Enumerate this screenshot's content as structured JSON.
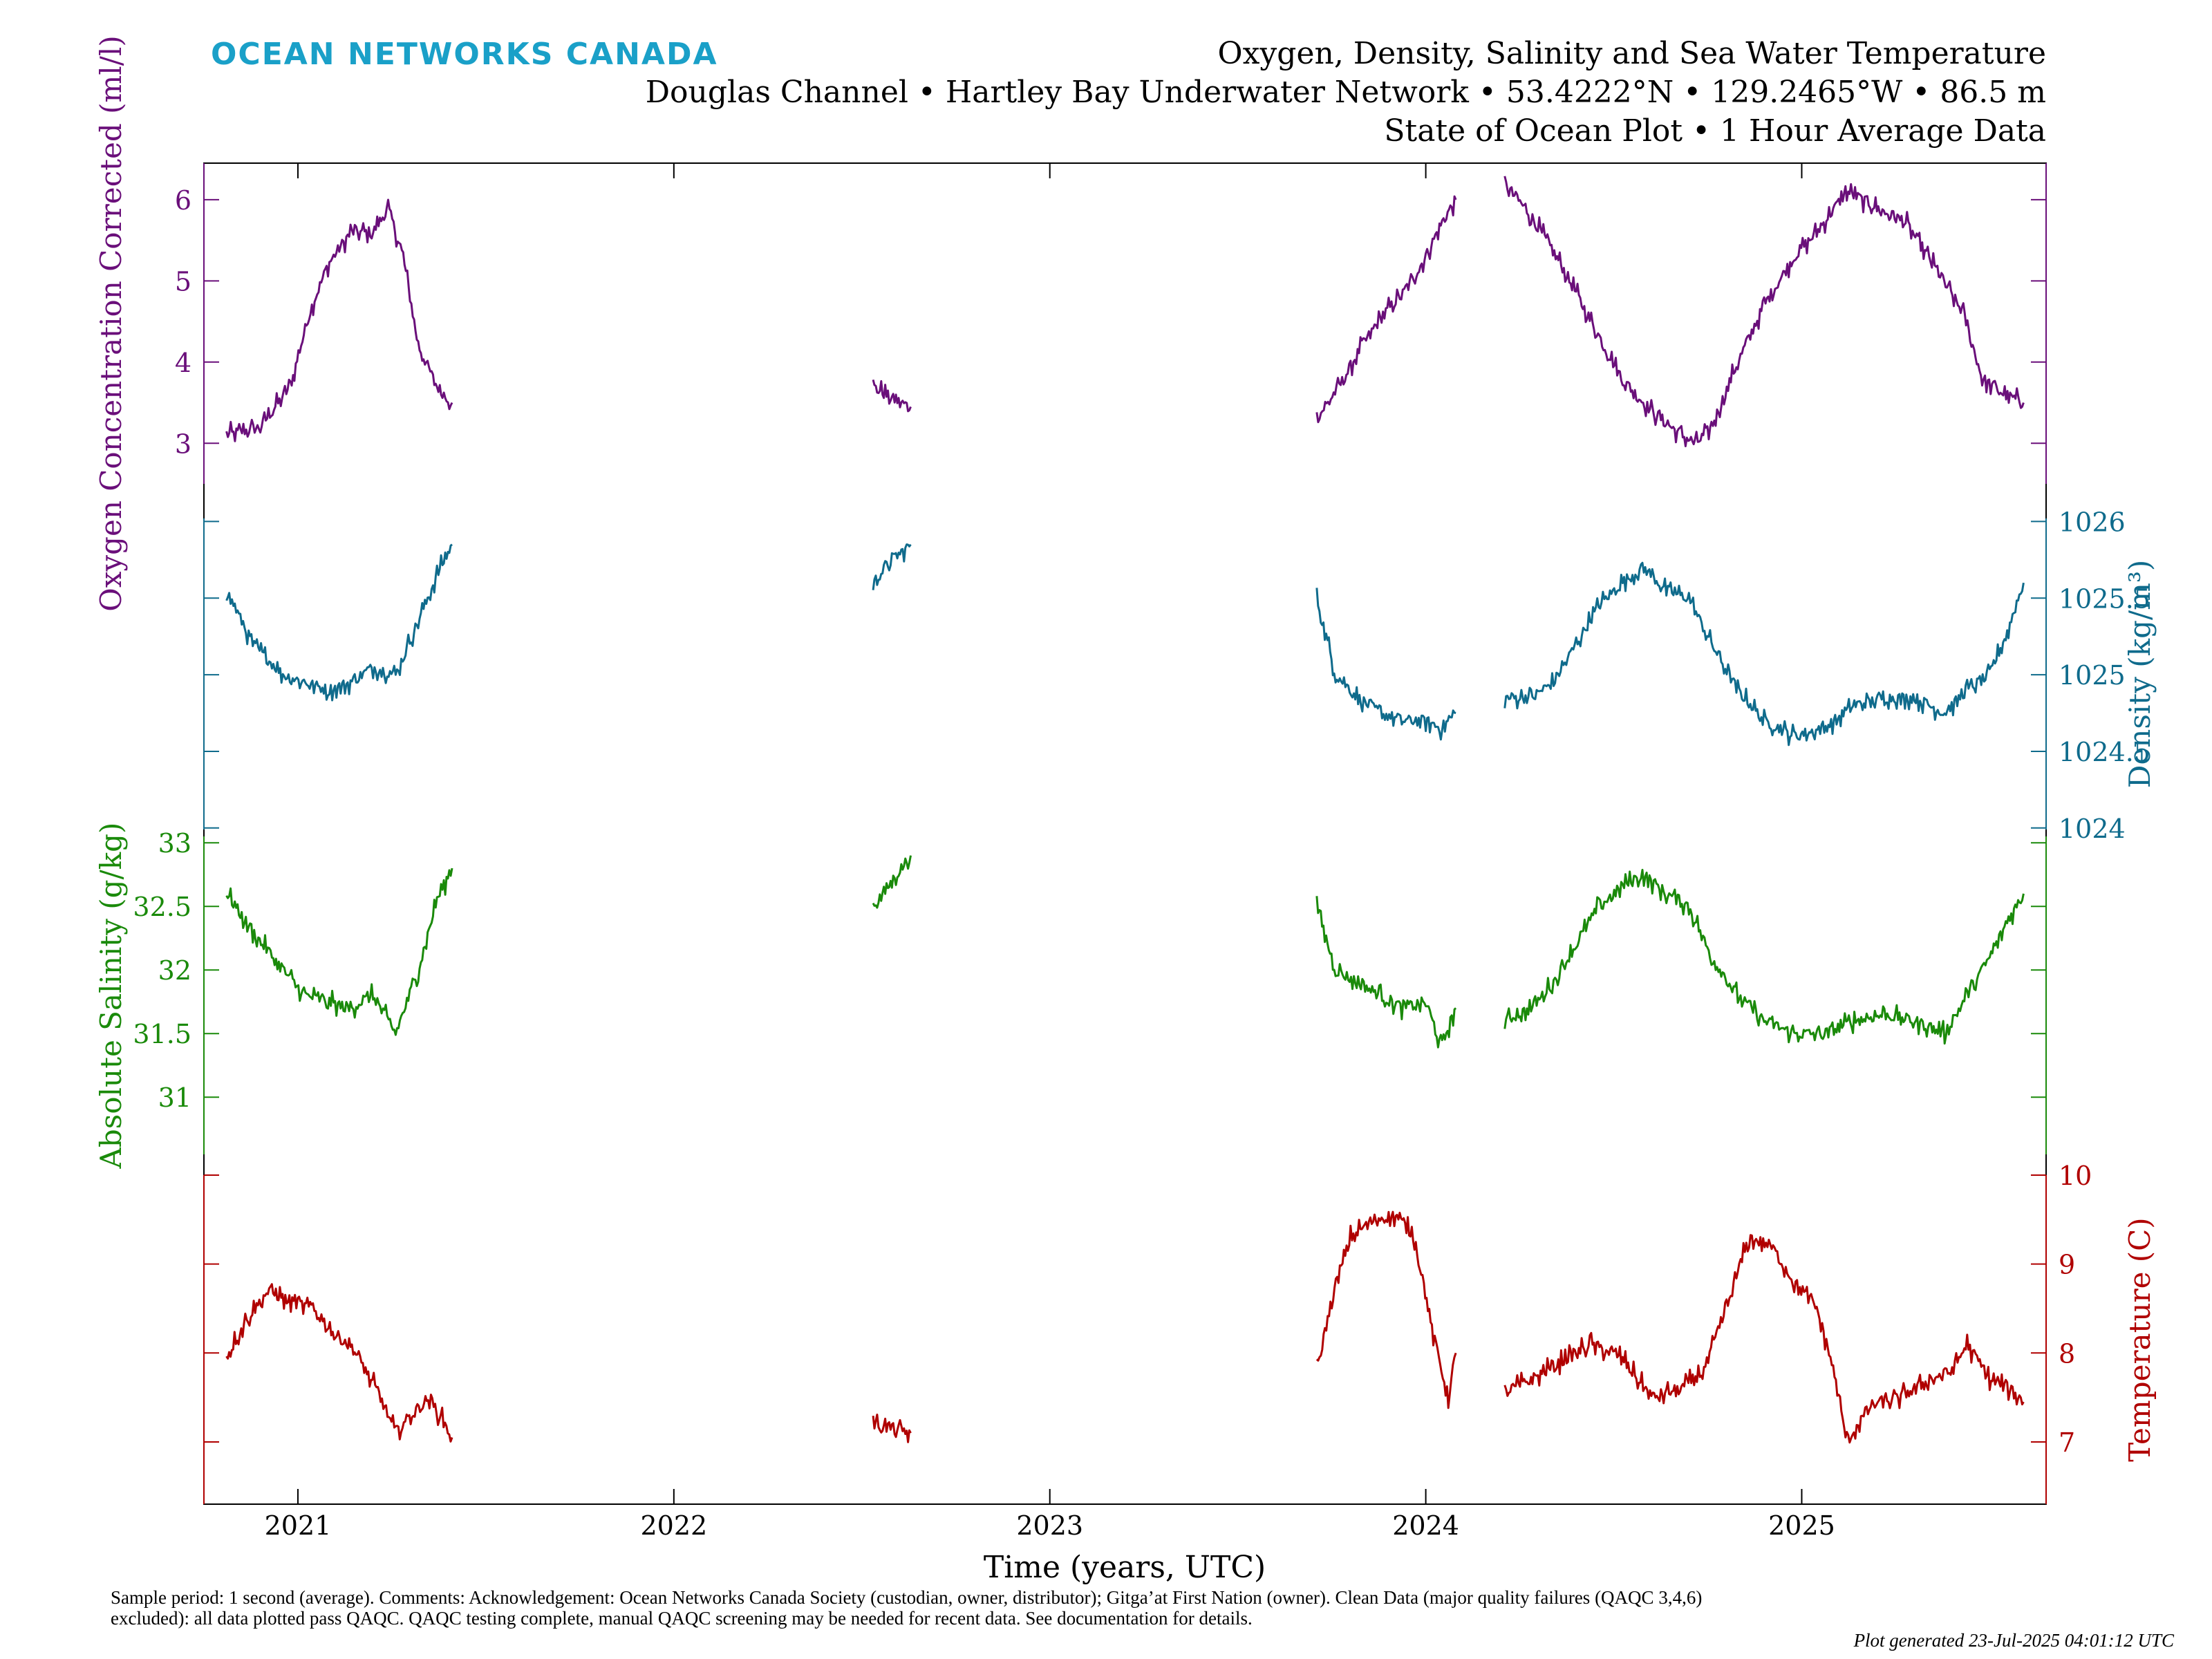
{
  "brand": "OCEAN NETWORKS CANADA",
  "title_lines": [
    "Oxygen, Density, Salinity and Sea Water Temperature",
    "Douglas Channel • Hartley Bay Underwater Network • 53.4222°N • 129.2465°W • 86.5 m",
    "State of Ocean Plot • 1 Hour Average Data"
  ],
  "footnote": "Sample period: 1 second (average). Comments: Acknowledgement: Ocean Networks Canada Society (custodian, owner, distributor); Gitga’at First Nation (owner). Clean Data (major quality failures (QAQC 3,4,6) excluded): all data plotted pass QAQC. QAQC testing complete, manual QAQC screening may be needed for recent data. See documentation for details.",
  "generated": "Plot generated 23-Jul-2025 04:01:12 UTC",
  "chart_data": {
    "type": "line",
    "xlabel": "Time (years, UTC)",
    "xlim": [
      2020.75,
      2025.65
    ],
    "xticks": [
      2021,
      2022,
      2023,
      2024,
      2025
    ],
    "xtick_labels": [
      "2021",
      "2022",
      "2023",
      "2024",
      "2025"
    ],
    "grid": false,
    "legend": "none",
    "series": [
      {
        "key": "oxygen",
        "ylabel": "Oxygen Concentration Corrected (ml/l)",
        "axis_side": "left",
        "color": "#6a0f7a",
        "ylim": [
          2.5,
          6.45
        ],
        "yticks": [
          3,
          4,
          5,
          6
        ],
        "segments": [
          {
            "x": [
              2020.81,
              2020.9,
              2020.98,
              2021.03,
              2021.08,
              2021.14,
              2021.2,
              2021.24,
              2021.28,
              2021.32,
              2021.37,
              2021.41
            ],
            "y": [
              3.1,
              3.2,
              3.7,
              4.6,
              5.2,
              5.6,
              5.6,
              5.9,
              5.3,
              4.2,
              3.7,
              3.5
            ]
          },
          {
            "x": [
              2022.53,
              2022.58,
              2022.63
            ],
            "y": [
              3.7,
              3.55,
              3.45
            ]
          },
          {
            "x": [
              2023.71,
              2023.77,
              2023.83,
              2023.89,
              2023.95,
              2024.0,
              2024.04,
              2024.08
            ],
            "y": [
              3.3,
              3.7,
              4.2,
              4.6,
              4.9,
              5.3,
              5.7,
              6.0
            ]
          },
          {
            "x": [
              2024.21,
              2024.28,
              2024.36,
              2024.44,
              2024.52,
              2024.6,
              2024.68,
              2024.72,
              2024.76,
              2024.83,
              2024.9,
              2024.98,
              2025.04,
              2025.12,
              2025.2,
              2025.28,
              2025.35,
              2025.43,
              2025.48,
              2025.54,
              2025.59
            ],
            "y": [
              6.2,
              5.8,
              5.2,
              4.5,
              3.8,
              3.4,
              3.1,
              3.0,
              3.2,
              4.0,
              4.7,
              5.3,
              5.6,
              6.1,
              5.9,
              5.7,
              5.2,
              4.6,
              3.8,
              3.6,
              3.5
            ]
          }
        ]
      },
      {
        "key": "density",
        "ylabel": "Density (kg/m³)",
        "axis_side": "right",
        "color": "#0f6b8c",
        "ylim": [
          1023.99,
          1026.02
        ],
        "yticks": [
          1024,
          1024.5,
          1025,
          1025.5,
          1026
        ],
        "ytick_labels": [
          "1024",
          "1024.5",
          "1025",
          "1025.5",
          "1026"
        ],
        "segments": [
          {
            "x": [
              2020.81,
              2020.88,
              2020.96,
              2021.02,
              2021.08,
              2021.14,
              2021.2,
              2021.26,
              2021.32,
              2021.37,
              2021.41
            ],
            "y": [
              1025.55,
              1025.2,
              1025.0,
              1024.95,
              1024.9,
              1024.95,
              1025.05,
              1025.0,
              1025.35,
              1025.65,
              1025.85
            ]
          },
          {
            "x": [
              2022.53,
              2022.58,
              2022.63
            ],
            "y": [
              1025.6,
              1025.75,
              1025.85
            ]
          },
          {
            "x": [
              2023.71,
              2023.76,
              2023.82,
              2023.88,
              2023.94,
              2024.0,
              2024.04,
              2024.08
            ],
            "y": [
              1025.5,
              1025.0,
              1024.85,
              1024.75,
              1024.7,
              1024.7,
              1024.65,
              1024.75
            ]
          },
          {
            "x": [
              2024.21,
              2024.28,
              2024.34,
              2024.4,
              2024.46,
              2024.52,
              2024.58,
              2024.64,
              2024.7,
              2024.76,
              2024.83,
              2024.9,
              2024.98,
              2025.06,
              2025.14,
              2025.22,
              2025.3,
              2025.38,
              2025.44,
              2025.5,
              2025.55,
              2025.59
            ],
            "y": [
              1024.85,
              1024.85,
              1024.95,
              1025.2,
              1025.45,
              1025.6,
              1025.7,
              1025.55,
              1025.5,
              1025.2,
              1024.9,
              1024.7,
              1024.6,
              1024.65,
              1024.8,
              1024.85,
              1024.85,
              1024.75,
              1024.9,
              1025.0,
              1025.3,
              1025.6
            ]
          }
        ]
      },
      {
        "key": "salinity",
        "ylabel": "Absolute Salinity (g/kg)",
        "axis_side": "left",
        "color": "#1a8a0a",
        "ylim": [
          30.55,
          33.05
        ],
        "yticks": [
          31,
          31.5,
          32,
          32.5,
          33
        ],
        "ytick_labels": [
          "31",
          "31.5",
          "32",
          "32.5",
          "33"
        ],
        "segments": [
          {
            "x": [
              2020.81,
              2020.88,
              2020.96,
              2021.02,
              2021.08,
              2021.14,
              2021.2,
              2021.26,
              2021.32,
              2021.37,
              2021.41
            ],
            "y": [
              32.6,
              32.3,
              32.0,
              31.8,
              31.75,
              31.7,
              31.8,
              31.5,
              32.0,
              32.55,
              32.8
            ]
          },
          {
            "x": [
              2022.53,
              2022.58,
              2022.63
            ],
            "y": [
              32.5,
              32.7,
              32.9
            ]
          },
          {
            "x": [
              2023.71,
              2023.76,
              2023.82,
              2023.88,
              2023.94,
              2024.0,
              2024.04,
              2024.08
            ],
            "y": [
              32.5,
              32.0,
              31.9,
              31.8,
              31.7,
              31.75,
              31.4,
              31.7
            ]
          },
          {
            "x": [
              2024.21,
              2024.28,
              2024.34,
              2024.4,
              2024.46,
              2024.52,
              2024.58,
              2024.64,
              2024.7,
              2024.76,
              2024.83,
              2024.9,
              2024.98,
              2025.06,
              2025.14,
              2025.22,
              2025.3,
              2025.38,
              2025.44,
              2025.5,
              2025.55,
              2025.59
            ],
            "y": [
              31.6,
              31.7,
              31.9,
              32.2,
              32.5,
              32.65,
              32.75,
              32.6,
              32.5,
              32.1,
              31.8,
              31.6,
              31.5,
              31.5,
              31.6,
              31.65,
              31.6,
              31.5,
              31.8,
              32.1,
              32.4,
              32.6
            ]
          }
        ]
      },
      {
        "key": "temperature",
        "ylabel": "Temperature (C)",
        "axis_side": "right",
        "color": "#b00000",
        "ylim": [
          6.3,
          10.0
        ],
        "yticks": [
          7,
          8,
          9,
          10
        ],
        "segments": [
          {
            "x": [
              2020.81,
              2020.86,
              2020.92,
              2020.97,
              2021.04,
              2021.1,
              2021.14,
              2021.18,
              2021.22,
              2021.26,
              2021.3,
              2021.35,
              2021.41
            ],
            "y": [
              7.95,
              8.35,
              8.7,
              8.6,
              8.5,
              8.2,
              8.1,
              7.8,
              7.5,
              7.1,
              7.3,
              7.5,
              7.05
            ]
          },
          {
            "x": [
              2022.53,
              2022.58,
              2022.63
            ],
            "y": [
              7.2,
              7.15,
              7.1
            ]
          },
          {
            "x": [
              2023.71,
              2023.75,
              2023.8,
              2023.86,
              2023.92,
              2023.97,
              2024.02,
              2024.06,
              2024.08
            ],
            "y": [
              7.8,
              8.6,
              9.3,
              9.5,
              9.55,
              9.3,
              8.2,
              7.5,
              8.0
            ]
          },
          {
            "x": [
              2024.21,
              2024.28,
              2024.36,
              2024.44,
              2024.52,
              2024.6,
              2024.68,
              2024.74,
              2024.8,
              2024.86,
              2024.92,
              2024.98,
              2025.04,
              2025.08,
              2025.12,
              2025.18,
              2025.26,
              2025.34,
              2025.4,
              2025.44,
              2025.5,
              2025.55,
              2025.59
            ],
            "y": [
              7.55,
              7.7,
              7.9,
              8.1,
              7.95,
              7.5,
              7.6,
              7.8,
              8.5,
              9.3,
              9.2,
              8.8,
              8.5,
              7.9,
              7.0,
              7.4,
              7.5,
              7.7,
              7.8,
              8.1,
              7.7,
              7.6,
              7.45
            ]
          }
        ]
      }
    ]
  }
}
